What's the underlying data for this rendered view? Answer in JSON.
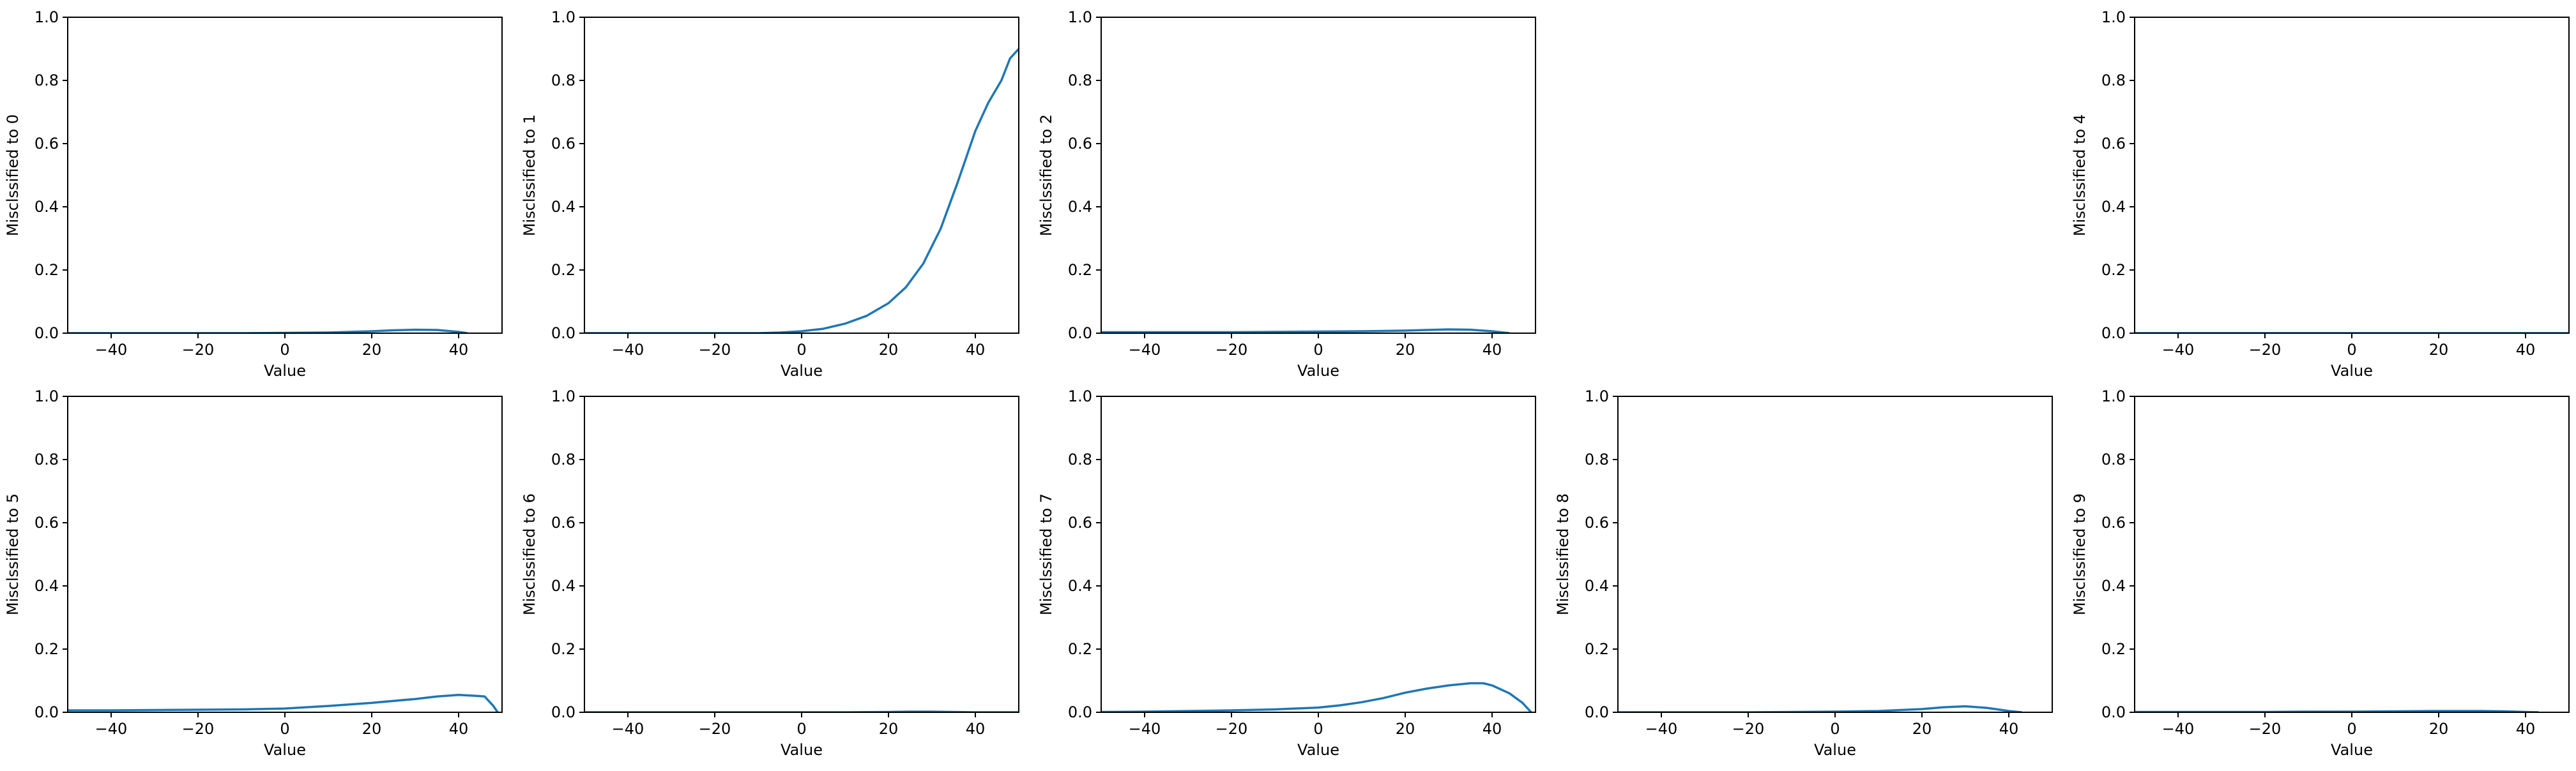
{
  "chart_data": [
    {
      "type": "line",
      "xlabel": "Value",
      "ylabel": "Misclssified to 0",
      "xlim": [
        -50,
        50
      ],
      "ylim": [
        0,
        1.0
      ],
      "xticks": [
        "−40",
        "−20",
        "0",
        "20",
        "40"
      ],
      "yticks": [
        "0.0",
        "0.2",
        "0.4",
        "0.6",
        "0.8",
        "1.0"
      ],
      "x": [
        -50,
        -40,
        -30,
        -20,
        -10,
        0,
        10,
        20,
        25,
        30,
        35,
        40,
        42
      ],
      "y": [
        0,
        0,
        0,
        0,
        0,
        0.001,
        0.002,
        0.006,
        0.009,
        0.011,
        0.01,
        0.004,
        0
      ]
    },
    {
      "type": "line",
      "xlabel": "Value",
      "ylabel": "Misclssified to 1",
      "xlim": [
        -50,
        50
      ],
      "ylim": [
        0,
        1.0
      ],
      "xticks": [
        "−40",
        "−20",
        "0",
        "20",
        "40"
      ],
      "yticks": [
        "0.0",
        "0.2",
        "0.4",
        "0.6",
        "0.8",
        "1.0"
      ],
      "x": [
        -50,
        -40,
        -30,
        -20,
        -10,
        -5,
        0,
        5,
        10,
        15,
        20,
        24,
        28,
        32,
        36,
        40,
        43,
        46,
        48,
        50
      ],
      "y": [
        0,
        0,
        0,
        0,
        0,
        0.002,
        0.006,
        0.014,
        0.03,
        0.055,
        0.095,
        0.145,
        0.22,
        0.33,
        0.48,
        0.64,
        0.73,
        0.8,
        0.87,
        0.9
      ]
    },
    {
      "type": "line",
      "xlabel": "Value",
      "ylabel": "Misclssified to 2",
      "xlim": [
        -50,
        50
      ],
      "ylim": [
        0,
        1.0
      ],
      "xticks": [
        "−40",
        "−20",
        "0",
        "20",
        "40"
      ],
      "yticks": [
        "0.0",
        "0.2",
        "0.4",
        "0.6",
        "0.8",
        "1.0"
      ],
      "x": [
        -50,
        -40,
        -30,
        -20,
        -10,
        0,
        10,
        20,
        25,
        30,
        35,
        40,
        44
      ],
      "y": [
        0.003,
        0.003,
        0.003,
        0.003,
        0.004,
        0.005,
        0.006,
        0.008,
        0.01,
        0.012,
        0.011,
        0.006,
        0
      ]
    },
    {
      "type": "line",
      "xlabel": "Value",
      "ylabel": "Misclssified to 4",
      "xlim": [
        -50,
        50
      ],
      "ylim": [
        0,
        1.0
      ],
      "xticks": [
        "−40",
        "−20",
        "0",
        "20",
        "40"
      ],
      "yticks": [
        "0.0",
        "0.2",
        "0.4",
        "0.6",
        "0.8",
        "1.0"
      ],
      "x": [
        -50,
        -40,
        -30,
        -20,
        -10,
        0,
        10,
        20,
        30,
        40,
        50
      ],
      "y": [
        0,
        0,
        0,
        0,
        0,
        0,
        0,
        0,
        0,
        0,
        0
      ]
    },
    {
      "type": "line",
      "xlabel": "Value",
      "ylabel": "Misclssified to 5",
      "xlim": [
        -50,
        50
      ],
      "ylim": [
        0,
        1.0
      ],
      "xticks": [
        "−40",
        "−20",
        "0",
        "20",
        "40"
      ],
      "yticks": [
        "0.0",
        "0.2",
        "0.4",
        "0.6",
        "0.8",
        "1.0"
      ],
      "x": [
        -50,
        -40,
        -30,
        -20,
        -10,
        0,
        10,
        20,
        30,
        35,
        40,
        44,
        46,
        48,
        49
      ],
      "y": [
        0.006,
        0.006,
        0.007,
        0.008,
        0.009,
        0.012,
        0.02,
        0.03,
        0.042,
        0.05,
        0.055,
        0.052,
        0.05,
        0.02,
        0
      ]
    },
    {
      "type": "line",
      "xlabel": "Value",
      "ylabel": "Misclssified to 6",
      "xlim": [
        -50,
        50
      ],
      "ylim": [
        0,
        1.0
      ],
      "xticks": [
        "−40",
        "−20",
        "0",
        "20",
        "40"
      ],
      "yticks": [
        "0.0",
        "0.2",
        "0.4",
        "0.6",
        "0.8",
        "1.0"
      ],
      "x": [
        -50,
        -40,
        -30,
        -20,
        -10,
        0,
        10,
        20,
        25,
        30,
        35,
        40,
        50
      ],
      "y": [
        0,
        0,
        0,
        0,
        0,
        0,
        0,
        0.001,
        0.002,
        0.002,
        0.001,
        0,
        0
      ]
    },
    {
      "type": "line",
      "xlabel": "Value",
      "ylabel": "Misclssified to 7",
      "xlim": [
        -50,
        50
      ],
      "ylim": [
        0,
        1.0
      ],
      "xticks": [
        "−40",
        "−20",
        "0",
        "20",
        "40"
      ],
      "yticks": [
        "0.0",
        "0.2",
        "0.4",
        "0.6",
        "0.8",
        "1.0"
      ],
      "x": [
        -50,
        -40,
        -30,
        -20,
        -10,
        0,
        5,
        10,
        15,
        20,
        25,
        30,
        35,
        38,
        40,
        44,
        47,
        49
      ],
      "y": [
        0.001,
        0.002,
        0.004,
        0.006,
        0.009,
        0.015,
        0.022,
        0.032,
        0.045,
        0.062,
        0.075,
        0.085,
        0.092,
        0.092,
        0.085,
        0.06,
        0.03,
        0
      ]
    },
    {
      "type": "line",
      "xlabel": "Value",
      "ylabel": "Misclssified to 8",
      "xlim": [
        -50,
        50
      ],
      "ylim": [
        0,
        1.0
      ],
      "xticks": [
        "−40",
        "−20",
        "0",
        "20",
        "40"
      ],
      "yticks": [
        "0.0",
        "0.2",
        "0.4",
        "0.6",
        "0.8",
        "1.0"
      ],
      "x": [
        -50,
        -40,
        -30,
        -20,
        -10,
        0,
        10,
        20,
        25,
        30,
        35,
        40,
        43
      ],
      "y": [
        0,
        0,
        0,
        0,
        0.001,
        0.002,
        0.004,
        0.01,
        0.016,
        0.019,
        0.014,
        0.004,
        0
      ]
    },
    {
      "type": "line",
      "xlabel": "Value",
      "ylabel": "Misclssified to 9",
      "xlim": [
        -50,
        50
      ],
      "ylim": [
        0,
        1.0
      ],
      "xticks": [
        "−40",
        "−20",
        "0",
        "20",
        "40"
      ],
      "yticks": [
        "0.0",
        "0.2",
        "0.4",
        "0.6",
        "0.8",
        "1.0"
      ],
      "x": [
        -50,
        -40,
        -30,
        -20,
        -10,
        0,
        10,
        20,
        30,
        35,
        40,
        43
      ],
      "y": [
        0.001,
        0.001,
        0.001,
        0.001,
        0.002,
        0.002,
        0.003,
        0.004,
        0.004,
        0.003,
        0.001,
        0
      ]
    }
  ],
  "style": {
    "line_color": "#1f77b4",
    "axis_color": "#000000"
  }
}
